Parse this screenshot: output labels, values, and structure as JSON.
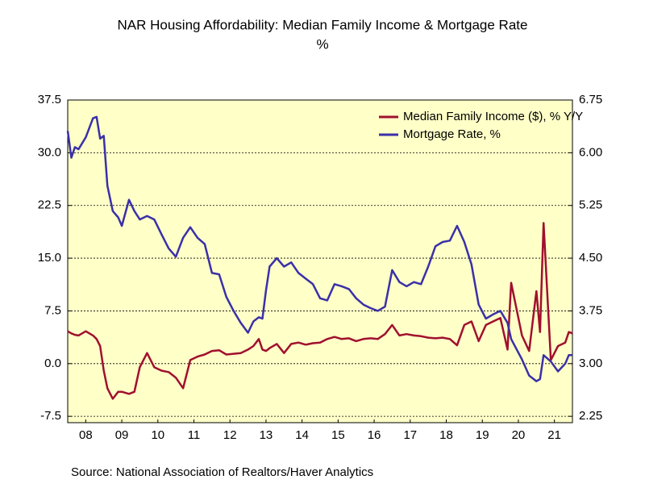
{
  "chart_data": {
    "type": "line",
    "title": "NAR Housing Affordability: Median Family Income & Mortgage Rate",
    "subtitle": "%",
    "source": "Source:  National Association of Realtors/Haver Analytics",
    "x": [
      2008.0,
      2008.1,
      2008.2,
      2008.3,
      2008.5,
      2008.7,
      2008.8,
      2008.9,
      2009.0,
      2009.1,
      2009.25,
      2009.4,
      2009.5,
      2009.7,
      2009.85,
      2010.0,
      2010.2,
      2010.4,
      2010.6,
      2010.8,
      2011.0,
      2011.2,
      2011.4,
      2011.6,
      2011.8,
      2012.0,
      2012.2,
      2012.4,
      2012.6,
      2012.8,
      2013.0,
      2013.15,
      2013.3,
      2013.4,
      2013.5,
      2013.6,
      2013.8,
      2014.0,
      2014.2,
      2014.4,
      2014.6,
      2014.8,
      2015.0,
      2015.2,
      2015.4,
      2015.6,
      2015.8,
      2016.0,
      2016.2,
      2016.4,
      2016.6,
      2016.8,
      2017.0,
      2017.2,
      2017.4,
      2017.6,
      2017.8,
      2018.0,
      2018.2,
      2018.4,
      2018.6,
      2018.8,
      2019.0,
      2019.2,
      2019.4,
      2019.6,
      2019.8,
      2020.0,
      2020.2,
      2020.3,
      2020.6,
      2020.8,
      2021.0,
      2021.1,
      2021.2,
      2021.4,
      2021.6,
      2021.8,
      2021.9,
      2022.0
    ],
    "series": [
      {
        "name": "Median Family Income ($), % Y/Y",
        "color": "#a0102e",
        "axis": "y",
        "values": [
          4.6,
          4.3,
          4.1,
          4.0,
          4.6,
          4.0,
          3.5,
          2.5,
          -1,
          -3.5,
          -5,
          -4,
          -4,
          -4.3,
          -4,
          -0.5,
          1.5,
          -0.5,
          -1,
          -1.2,
          -2,
          -3.5,
          0.5,
          1,
          1.3,
          1.8,
          1.9,
          1.3,
          1.4,
          1.5,
          2.0,
          2.5,
          3.5,
          2.0,
          1.8,
          2.2,
          2.8,
          1.5,
          2.8,
          3.0,
          2.7,
          2.9,
          3.0,
          3.5,
          3.8,
          3.5,
          3.6,
          3.2,
          3.5,
          3.6,
          3.5,
          4.2,
          5.5,
          4.0,
          4.2,
          4.0,
          3.9,
          3.7,
          3.6,
          3.7,
          3.5,
          2.6,
          5.5,
          6.0,
          3.2,
          5.5,
          6.0,
          6.5,
          2.0,
          11.5,
          4.0,
          1.8,
          10.3,
          4.5,
          20.0,
          0.5,
          2.5,
          3.0,
          4.5,
          4.3
        ]
      },
      {
        "name": "Mortgage Rate, %",
        "color": "#3a30a8",
        "axis": "y2",
        "values": [
          6.31,
          5.93,
          6.08,
          6.05,
          6.22,
          6.49,
          6.51,
          6.2,
          6.24,
          5.53,
          5.17,
          5.08,
          4.96,
          5.33,
          5.17,
          5.05,
          5.1,
          5.05,
          4.84,
          4.64,
          4.52,
          4.79,
          4.94,
          4.79,
          4.7,
          4.29,
          4.27,
          3.95,
          3.75,
          3.58,
          3.44,
          3.6,
          3.66,
          3.64,
          4.04,
          4.38,
          4.5,
          4.38,
          4.44,
          4.29,
          4.21,
          4.13,
          3.93,
          3.9,
          4.13,
          4.1,
          4.06,
          3.93,
          3.84,
          3.79,
          3.75,
          3.81,
          4.33,
          4.16,
          4.1,
          4.16,
          4.13,
          4.38,
          4.67,
          4.73,
          4.75,
          4.96,
          4.73,
          4.41,
          3.84,
          3.64,
          3.7,
          3.75,
          3.58,
          3.35,
          3.06,
          2.83,
          2.75,
          2.78,
          3.12,
          3.03,
          2.89,
          3.0,
          3.12,
          3.12
        ]
      }
    ],
    "xlim": [
      2008,
      2022
    ],
    "xticks": [
      {
        "value": 2008.5,
        "label": "08"
      },
      {
        "value": 2009.5,
        "label": "09"
      },
      {
        "value": 2010.5,
        "label": "10"
      },
      {
        "value": 2011.5,
        "label": "11"
      },
      {
        "value": 2012.5,
        "label": "12"
      },
      {
        "value": 2013.5,
        "label": "13"
      },
      {
        "value": 2014.5,
        "label": "14"
      },
      {
        "value": 2015.5,
        "label": "15"
      },
      {
        "value": 2016.5,
        "label": "16"
      },
      {
        "value": 2017.5,
        "label": "17"
      },
      {
        "value": 2018.5,
        "label": "18"
      },
      {
        "value": 2019.5,
        "label": "19"
      },
      {
        "value": 2020.5,
        "label": "20"
      },
      {
        "value": 2021.5,
        "label": "21"
      }
    ],
    "ylim": [
      -8.4,
      37.5
    ],
    "yticks": [
      37.5,
      {
        "value": 30,
        "label": "30.0"
      },
      22.5,
      {
        "value": 15,
        "label": "15.0"
      },
      7.5,
      {
        "value": 0,
        "label": "0.0"
      },
      -7.5
    ],
    "y2lim": [
      2.16,
      6.75
    ],
    "y2ticks": [
      6.75,
      {
        "value": 6,
        "label": "6.00"
      },
      5.25,
      {
        "value": 4.5,
        "label": "4.50"
      },
      3.75,
      {
        "value": 3,
        "label": "3.00"
      },
      2.25
    ],
    "grid": true,
    "legend": "upper right"
  }
}
